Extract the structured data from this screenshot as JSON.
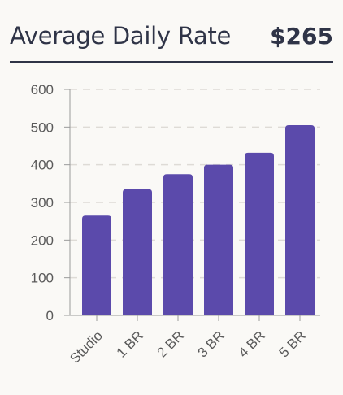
{
  "header": {
    "title": "Average Daily Rate",
    "value": "$265"
  },
  "colors": {
    "bar": "#5b4aab",
    "grid": "#dedbd6",
    "axis": "#9a9a9a",
    "text": "#2f3447"
  },
  "chart_data": {
    "type": "bar",
    "title": "Average Daily Rate",
    "xlabel": "",
    "ylabel": "",
    "categories": [
      "Studio",
      "1 BR",
      "2 BR",
      "3 BR",
      "4 BR",
      "5 BR"
    ],
    "values": [
      265,
      335,
      375,
      400,
      432,
      505
    ],
    "ylim": [
      0,
      600
    ],
    "yticks": [
      0,
      100,
      200,
      300,
      400,
      500,
      600
    ],
    "grid": true,
    "legend": "none"
  }
}
